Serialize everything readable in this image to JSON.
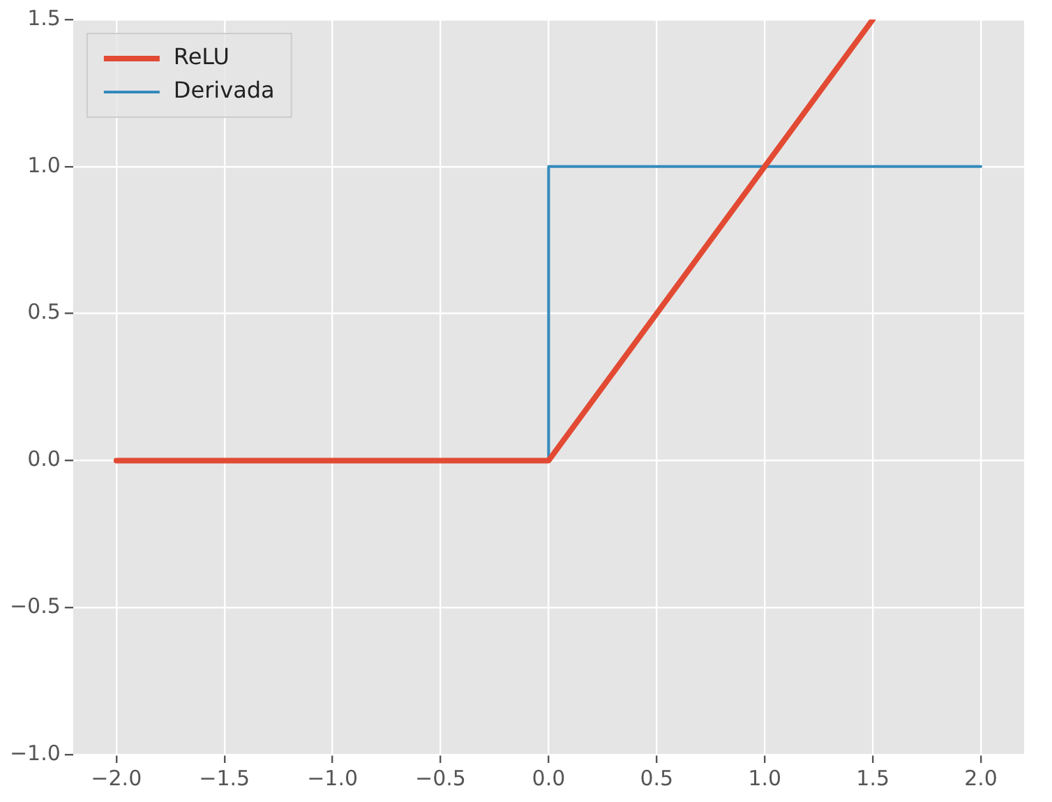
{
  "chart_data": {
    "type": "line",
    "legend": "top left",
    "grid": true,
    "marker": "none",
    "line_style": "solid",
    "xlim": [
      -2.2,
      2.2
    ],
    "ylim": [
      -1,
      1.5
    ],
    "xticks": [
      {
        "value": -2,
        "label": "−2.0"
      },
      {
        "value": -1.5,
        "label": "−1.5"
      },
      {
        "value": -1,
        "label": "−1.0"
      },
      {
        "value": -0.5,
        "label": "−0.5"
      },
      {
        "value": 0,
        "label": "0.0"
      },
      {
        "value": 0.5,
        "label": "0.5"
      },
      {
        "value": 1,
        "label": "1.0"
      },
      {
        "value": 1.5,
        "label": "1.5"
      },
      {
        "value": 2,
        "label": "2.0"
      }
    ],
    "yticks": [
      {
        "value": -1,
        "label": "−1.0"
      },
      {
        "value": -0.5,
        "label": "−0.5"
      },
      {
        "value": 0,
        "label": "0.0"
      },
      {
        "value": 0.5,
        "label": "0.5"
      },
      {
        "value": 1,
        "label": "1.0"
      },
      {
        "value": 1.5,
        "label": "1.5"
      }
    ],
    "series": [
      {
        "name": "ReLU",
        "color": "#e24a33",
        "x": [
          -2,
          0,
          1.5
        ],
        "values": [
          0,
          0,
          1.5
        ]
      },
      {
        "name": "Derivada",
        "color": "#348abd",
        "x": [
          -2,
          0,
          0,
          2
        ],
        "values": [
          0,
          0,
          1,
          1
        ]
      }
    ]
  }
}
